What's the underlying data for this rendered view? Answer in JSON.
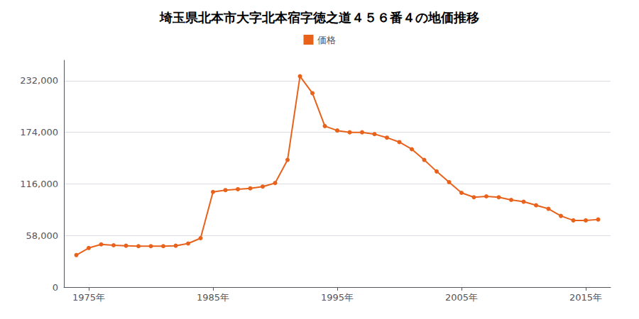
{
  "chart_data": {
    "type": "line",
    "title": "埼玉県北本市大字北本宿字徳之道４５６番４の地価推移",
    "x": [
      1974,
      1975,
      1976,
      1977,
      1978,
      1979,
      1980,
      1981,
      1982,
      1983,
      1984,
      1985,
      1986,
      1987,
      1988,
      1989,
      1990,
      1991,
      1992,
      1993,
      1994,
      1995,
      1996,
      1997,
      1998,
      1999,
      2000,
      2001,
      2002,
      2003,
      2004,
      2005,
      2006,
      2007,
      2008,
      2009,
      2010,
      2011,
      2012,
      2013,
      2014,
      2015,
      2016
    ],
    "series": [
      {
        "name": "価格",
        "color": "#e8621c",
        "marker": "circle",
        "values": [
          36000,
          44000,
          48000,
          47000,
          46500,
          46000,
          46000,
          46000,
          46500,
          49000,
          55000,
          107000,
          109000,
          110000,
          111000,
          113000,
          117000,
          143000,
          237000,
          218000,
          181000,
          176000,
          174000,
          174000,
          172000,
          168000,
          163000,
          155000,
          143000,
          130000,
          118000,
          106000,
          101000,
          102000,
          101000,
          98000,
          96000,
          92000,
          88000,
          80000,
          75000,
          75000,
          76000
        ]
      }
    ],
    "xlim": [
      1973,
      2017
    ],
    "xticks": [
      {
        "value": 1975,
        "label": "1975年"
      },
      {
        "value": 1985,
        "label": "1985年"
      },
      {
        "value": 1995,
        "label": "1995年"
      },
      {
        "value": 2005,
        "label": "2005年"
      },
      {
        "value": 2015,
        "label": "2015年"
      }
    ],
    "ylim": [
      0,
      255000
    ],
    "yticks": [
      0,
      {
        "value": 58000,
        "label": "58,000"
      },
      {
        "value": 116000,
        "label": "116,000"
      },
      {
        "value": 174000,
        "label": "174,000"
      },
      {
        "value": 232000,
        "label": "232,000"
      }
    ],
    "grid": "y",
    "legend": "top"
  }
}
